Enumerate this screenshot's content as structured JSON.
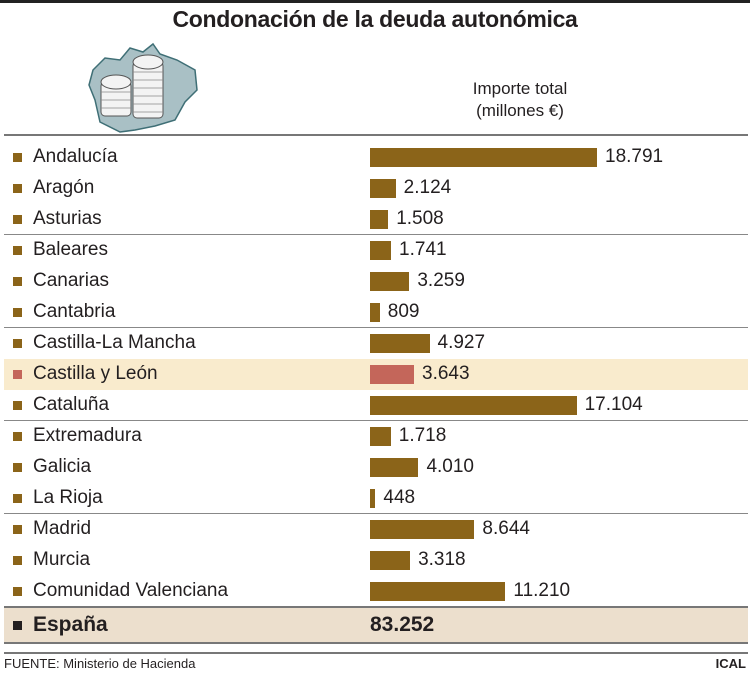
{
  "title": "Condonación de la deuda autonómica",
  "unit_line1": "Importe total",
  "unit_line2": "(millones €)",
  "icon": "castilla-y-leon-map-with-coin-stacks",
  "colors": {
    "bar": "#8b6419",
    "highlight_bar": "#c4665a",
    "highlight_row": "#f9ebcd",
    "total_row": "#ecdfcd",
    "total_marker": "#231f20"
  },
  "chart_data": {
    "type": "bar",
    "orientation": "horizontal",
    "title": "Condonación de la deuda autonómica",
    "xlabel": "Importe total (millones €)",
    "categories": [
      "Andalucía",
      "Aragón",
      "Asturias",
      "Baleares",
      "Canarias",
      "Cantabria",
      "Castilla-La Mancha",
      "Castilla y León",
      "Cataluña",
      "Extremadura",
      "Galicia",
      "La Rioja",
      "Madrid",
      "Murcia",
      "Comunidad Valenciana"
    ],
    "values": [
      18791,
      2124,
      1508,
      1741,
      3259,
      809,
      4927,
      3643,
      17104,
      1718,
      4010,
      448,
      8644,
      3318,
      11210
    ],
    "value_labels": [
      "18.791",
      "2.124",
      "1.508",
      "1.741",
      "3.259",
      "809",
      "4.927",
      "3.643",
      "17.104",
      "1.718",
      "4.010",
      "448",
      "8.644",
      "3.318",
      "11.210"
    ],
    "highlight": "Castilla y León",
    "total": {
      "label": "España",
      "value": 83252,
      "value_label": "83.252"
    },
    "grid": false
  },
  "footer": {
    "source": "FUENTE: Ministerio de Hacienda",
    "credit": "ICAL"
  }
}
